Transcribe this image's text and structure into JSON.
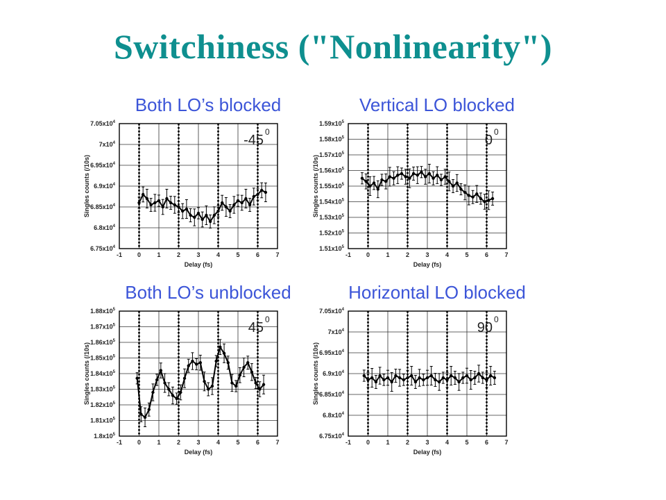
{
  "slide": {
    "title": "Switchiness (\"Nonlinearity\")"
  },
  "chart_data": [
    {
      "type": "scatter",
      "title": "Both LO’s blocked",
      "xlabel": "Delay (fs)",
      "ylabel": "Singles counts (/10s)",
      "xlim": [
        -1,
        7
      ],
      "ylim": [
        67500,
        70500
      ],
      "x_ticks": [
        "-1",
        "0",
        "1",
        "2",
        "3",
        "4",
        "5",
        "6",
        "7"
      ],
      "y_ticks": [
        {
          "v": 70500,
          "m": "7.05x10",
          "e": "4"
        },
        {
          "v": 70000,
          "m": "7x10",
          "e": "4"
        },
        {
          "v": 69500,
          "m": "6.95x10",
          "e": "4"
        },
        {
          "v": 69000,
          "m": "6.9x10",
          "e": "4"
        },
        {
          "v": 68500,
          "m": "6.85x10",
          "e": "4"
        },
        {
          "v": 68000,
          "m": "6.8x10",
          "e": "4"
        },
        {
          "v": 67500,
          "m": "6.75x10",
          "e": "4"
        }
      ],
      "annotation": {
        "value": "-45",
        "sup": "0"
      },
      "dotted_x": [
        0,
        2,
        4,
        6
      ],
      "grid": true,
      "series": [
        {
          "x": [
            0,
            0.2,
            0.4,
            0.6,
            0.8,
            1,
            1.2,
            1.4,
            1.6,
            1.8,
            2,
            2.2,
            2.4,
            2.6,
            2.8,
            3,
            3.2,
            3.4,
            3.6,
            3.8,
            4,
            4.2,
            4.4,
            4.6,
            4.8,
            5,
            5.2,
            5.4,
            5.6,
            5.8,
            6,
            6.2,
            6.4
          ],
          "y": [
            68600,
            68800,
            68700,
            68550,
            68600,
            68650,
            68500,
            68700,
            68600,
            68550,
            68500,
            68400,
            68450,
            68300,
            68250,
            68350,
            68200,
            68300,
            68150,
            68300,
            68400,
            68600,
            68500,
            68400,
            68550,
            68650,
            68600,
            68700,
            68550,
            68750,
            68800,
            68900,
            68850
          ]
        }
      ]
    },
    {
      "type": "scatter",
      "title": "Vertical LO blocked",
      "xlabel": "Delay (fs)",
      "ylabel": "Singles counts (/10s)",
      "xlim": [
        -1,
        7
      ],
      "ylim": [
        151000,
        159000
      ],
      "x_ticks": [
        "-1",
        "0",
        "1",
        "2",
        "3",
        "4",
        "5",
        "6",
        "7"
      ],
      "y_ticks": [
        {
          "v": 159000,
          "m": "1.59x10",
          "e": "5"
        },
        {
          "v": 158000,
          "m": "1.58x10",
          "e": "5"
        },
        {
          "v": 157000,
          "m": "1.57x10",
          "e": "5"
        },
        {
          "v": 156000,
          "m": "1.56x10",
          "e": "5"
        },
        {
          "v": 155000,
          "m": "1.55x10",
          "e": "5"
        },
        {
          "v": 154000,
          "m": "1.54x10",
          "e": "5"
        },
        {
          "v": 153000,
          "m": "1.53x10",
          "e": "5"
        },
        {
          "v": 152000,
          "m": "1.52x10",
          "e": "5"
        },
        {
          "v": 151000,
          "m": "1.51x10",
          "e": "5"
        }
      ],
      "annotation": {
        "value": "0",
        "sup": "0"
      },
      "dotted_x": [
        0,
        2,
        4,
        6
      ],
      "grid": true,
      "series": [
        {
          "x": [
            -0.3,
            -0.1,
            0.1,
            0.3,
            0.5,
            0.7,
            0.9,
            1.1,
            1.3,
            1.5,
            1.7,
            1.9,
            2.1,
            2.3,
            2.5,
            2.7,
            2.9,
            3.1,
            3.3,
            3.5,
            3.7,
            3.9,
            4.1,
            4.3,
            4.5,
            4.7,
            4.9,
            5.1,
            5.3,
            5.5,
            5.7,
            5.9,
            6.1,
            6.3
          ],
          "y": [
            155500,
            155300,
            155000,
            155200,
            154800,
            155400,
            155300,
            155600,
            155500,
            155700,
            155800,
            155600,
            155500,
            155800,
            155700,
            155900,
            155600,
            155800,
            155500,
            155700,
            155400,
            155600,
            155300,
            155000,
            155200,
            154800,
            154600,
            154400,
            154300,
            154500,
            154200,
            154000,
            154100,
            154200
          ]
        }
      ]
    },
    {
      "type": "scatter",
      "title": "Both LO’s unblocked",
      "xlabel": "Delay (fs)",
      "ylabel": "Singles counts (/10s)",
      "xlim": [
        -1,
        7
      ],
      "ylim": [
        180000,
        188000
      ],
      "x_ticks": [
        "-1",
        "0",
        "1",
        "2",
        "3",
        "4",
        "5",
        "6",
        "7"
      ],
      "y_ticks": [
        {
          "v": 188000,
          "m": "1.88x10",
          "e": "5"
        },
        {
          "v": 187000,
          "m": "1.87x10",
          "e": "5"
        },
        {
          "v": 186000,
          "m": "1.86x10",
          "e": "5"
        },
        {
          "v": 185000,
          "m": "1.85x10",
          "e": "5"
        },
        {
          "v": 184000,
          "m": "1.84x10",
          "e": "5"
        },
        {
          "v": 183000,
          "m": "1.83x10",
          "e": "5"
        },
        {
          "v": 182000,
          "m": "1.82x10",
          "e": "5"
        },
        {
          "v": 181000,
          "m": "1.81x10",
          "e": "5"
        },
        {
          "v": 180000,
          "m": "1.8x10",
          "e": "5"
        }
      ],
      "annotation": {
        "value": "45",
        "sup": "0"
      },
      "dotted_x": [
        0,
        2,
        4,
        6
      ],
      "grid": true,
      "series": [
        {
          "x": [
            -0.1,
            0.1,
            0.3,
            0.5,
            0.7,
            0.9,
            1.1,
            1.3,
            1.5,
            1.7,
            1.9,
            2.1,
            2.3,
            2.5,
            2.7,
            2.9,
            3.1,
            3.3,
            3.5,
            3.7,
            3.9,
            4.1,
            4.3,
            4.5,
            4.7,
            4.9,
            5.1,
            5.3,
            5.5,
            5.7,
            5.9,
            6.1,
            6.3
          ],
          "y": [
            183700,
            181400,
            181200,
            181700,
            182800,
            183600,
            184200,
            183400,
            183000,
            182600,
            182400,
            182800,
            183700,
            184500,
            184800,
            184600,
            184700,
            183500,
            183000,
            183200,
            184800,
            185700,
            185300,
            184700,
            183400,
            183200,
            183900,
            184400,
            184700,
            184100,
            183400,
            183000,
            183300
          ]
        }
      ]
    },
    {
      "type": "scatter",
      "title": "Horizontal LO blocked",
      "xlabel": "Delay (fs)",
      "ylabel": "Singles counts (/10s)",
      "xlim": [
        -1,
        7
      ],
      "ylim": [
        67500,
        70500
      ],
      "x_ticks": [
        "-1",
        "0",
        "1",
        "2",
        "3",
        "4",
        "5",
        "6",
        "7"
      ],
      "y_ticks": [
        {
          "v": 70500,
          "m": "7.05x10",
          "e": "4"
        },
        {
          "v": 70000,
          "m": "7x10",
          "e": "4"
        },
        {
          "v": 69500,
          "m": "6.95x10",
          "e": "4"
        },
        {
          "v": 69000,
          "m": "6.9x10",
          "e": "4"
        },
        {
          "v": 68500,
          "m": "6.85x10",
          "e": "4"
        },
        {
          "v": 68000,
          "m": "6.8x10",
          "e": "4"
        },
        {
          "v": 67500,
          "m": "6.75x10",
          "e": "4"
        }
      ],
      "annotation": {
        "value": "90",
        "sup": "0"
      },
      "dotted_x": [
        0,
        2,
        4,
        6
      ],
      "grid": true,
      "series": [
        {
          "x": [
            -0.2,
            0,
            0.2,
            0.4,
            0.6,
            0.8,
            1,
            1.2,
            1.4,
            1.6,
            1.8,
            2,
            2.2,
            2.4,
            2.6,
            2.8,
            3,
            3.2,
            3.4,
            3.6,
            3.8,
            4,
            4.2,
            4.4,
            4.6,
            4.8,
            5,
            5.2,
            5.4,
            5.6,
            5.8,
            6,
            6.2,
            6.4
          ],
          "y": [
            68950,
            68850,
            68900,
            68800,
            68950,
            68850,
            68900,
            68800,
            68950,
            68900,
            68850,
            68900,
            68950,
            68800,
            68900,
            68850,
            68900,
            68950,
            68850,
            68800,
            68900,
            68850,
            68950,
            68900,
            68800,
            68900,
            68950,
            68850,
            68900,
            69000,
            68900,
            68850,
            68950,
            68900
          ]
        }
      ]
    }
  ]
}
